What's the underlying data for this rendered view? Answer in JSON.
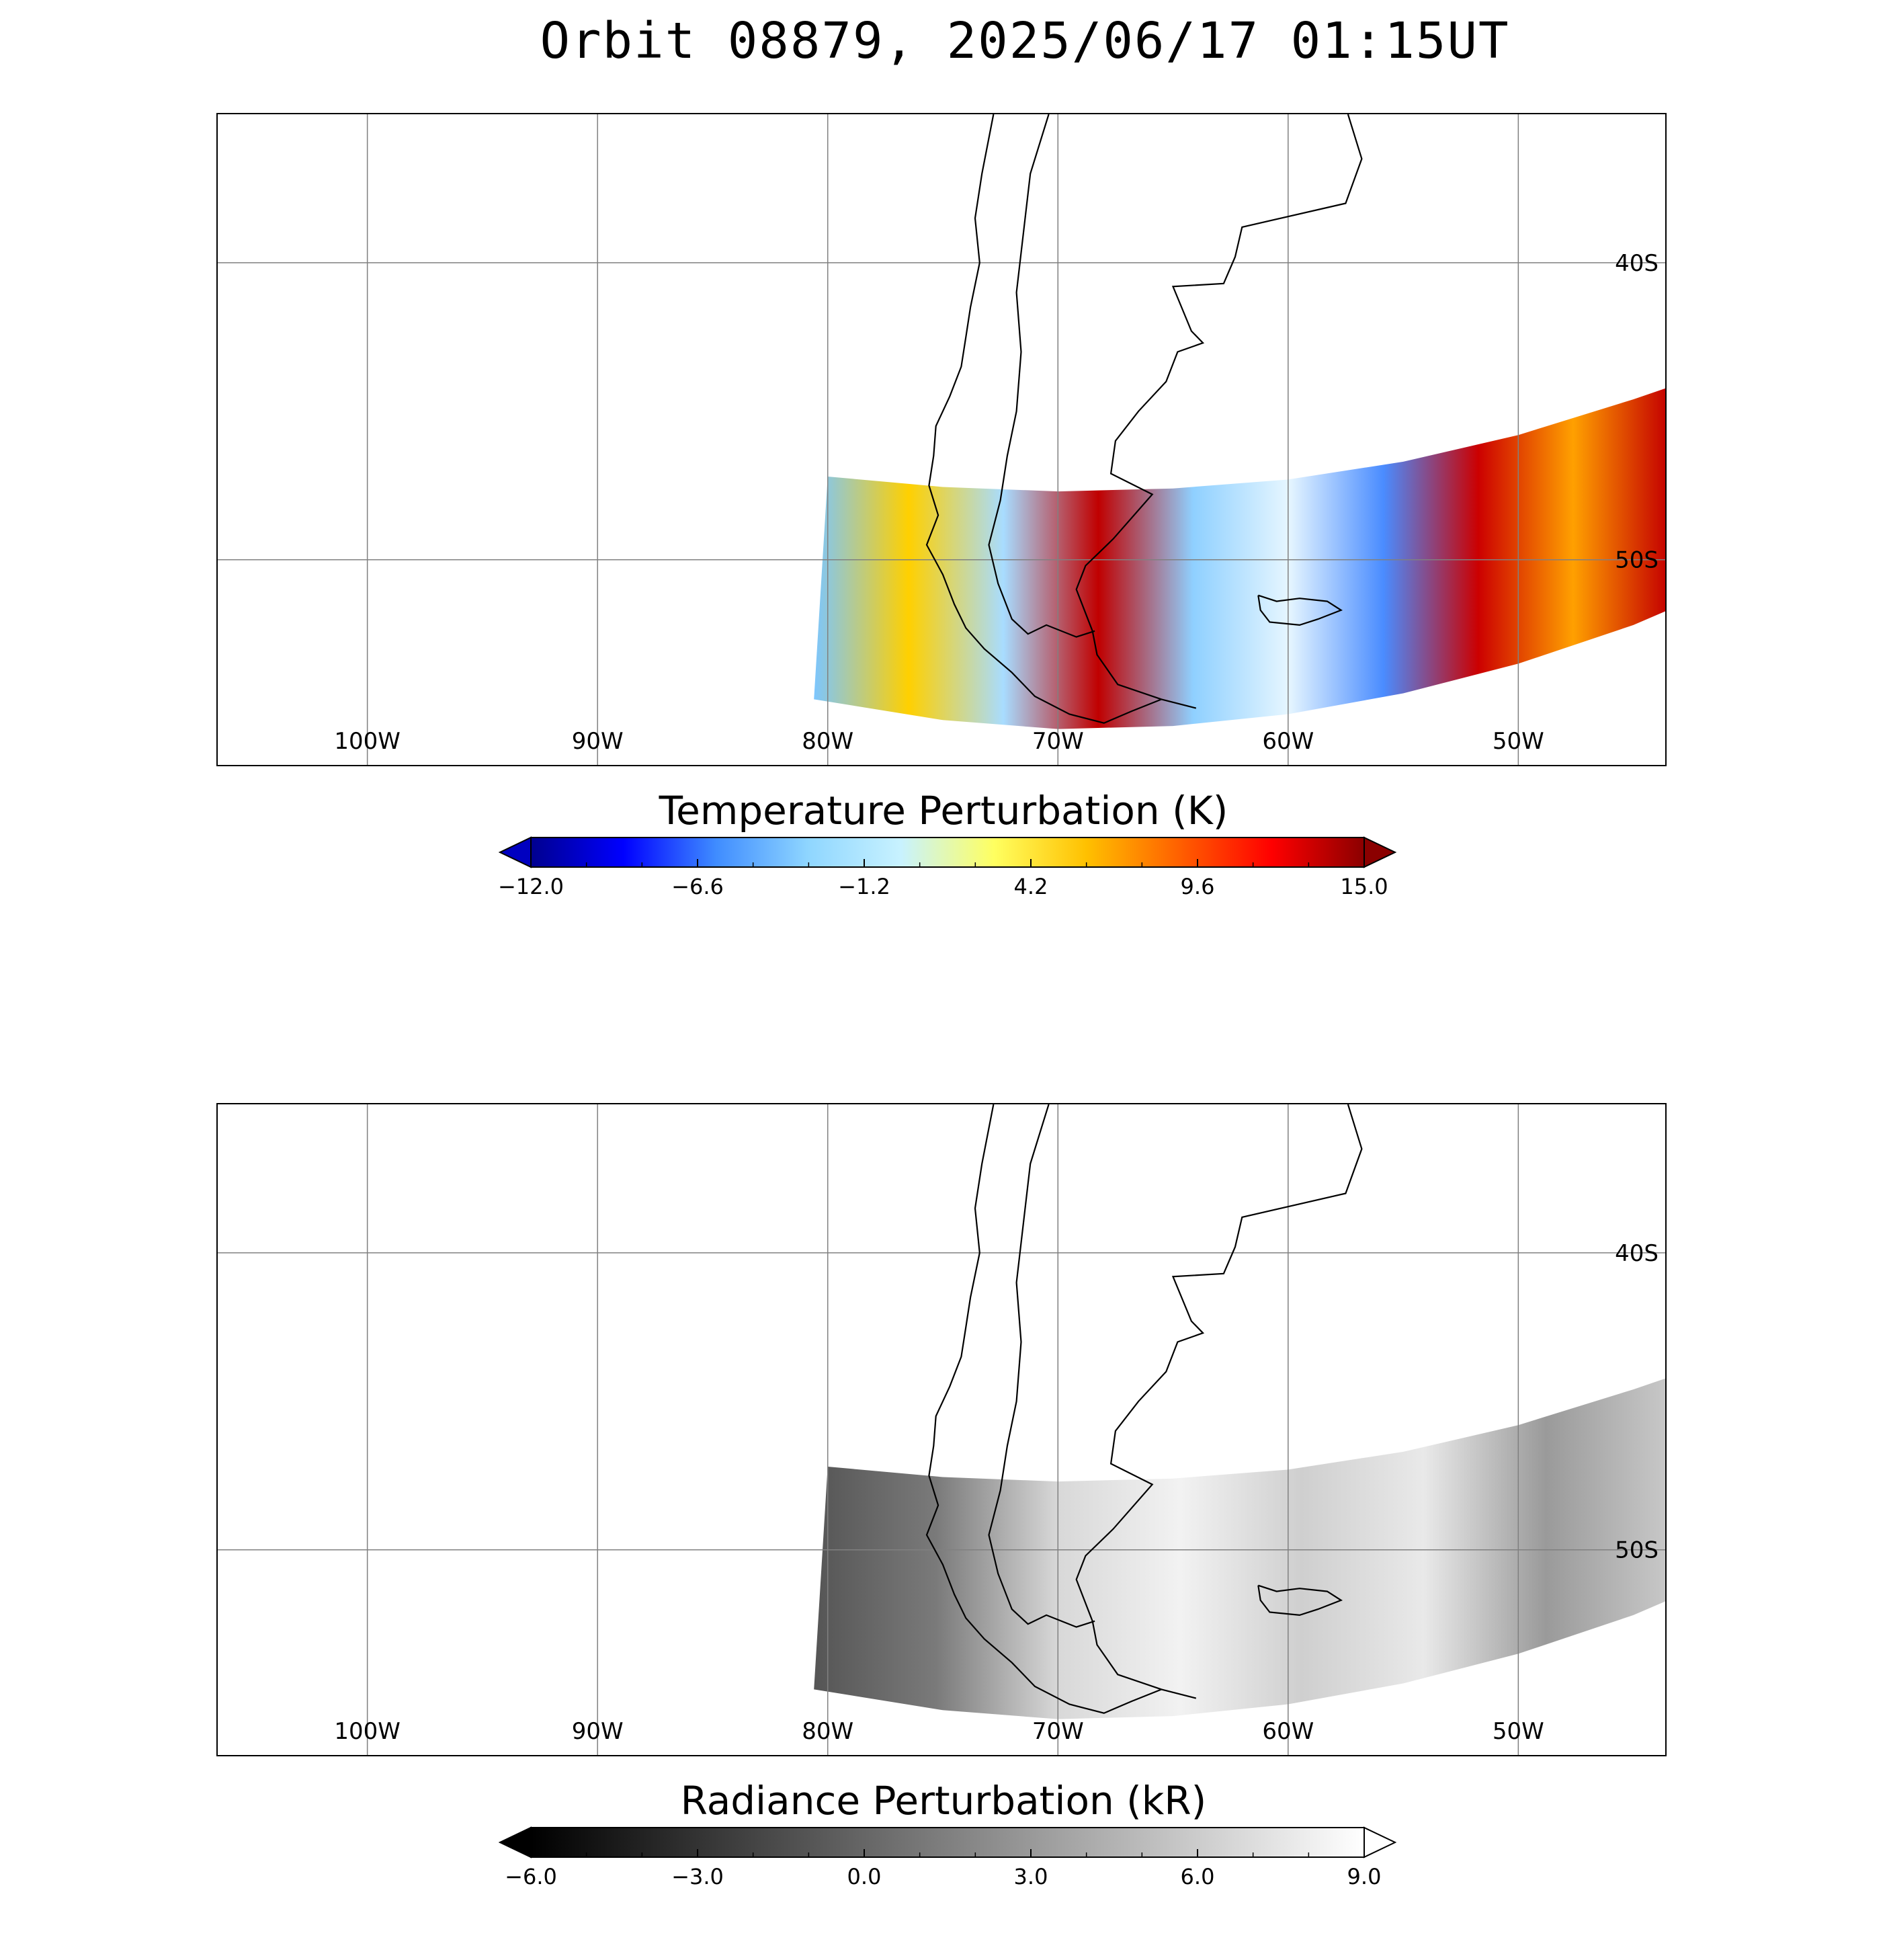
{
  "title": "Orbit 08879, 2025/06/17 01:15UT",
  "map": {
    "lon_range": [
      -106.5,
      -43.5
    ],
    "lat_range": [
      -57,
      -35
    ],
    "lon_gridlines": [
      -100,
      -90,
      -80,
      -70,
      -60,
      -50
    ],
    "lat_gridlines": [
      -40,
      -50
    ],
    "lon_labels": [
      "100W",
      "90W",
      "80W",
      "70W",
      "60W",
      "50W"
    ],
    "lat_labels": [
      "40S",
      "50S"
    ],
    "swath_description_key": "AIRS orbit swath over southern South America"
  },
  "panels": [
    {
      "id": "temperature",
      "colorbar_title": "Temperature Perturbation (K)",
      "colorbar_ticks": [
        "−12.0",
        "−6.6",
        "−1.2",
        "4.2",
        "9.6",
        "15.0"
      ],
      "colorbar_range": [
        -12.0,
        15.0
      ],
      "colormap": [
        "#00008f",
        "#0000ff",
        "#3f8cff",
        "#8fd6ff",
        "#c8f2ff",
        "#ffff60",
        "#ffc000",
        "#ff6000",
        "#ff0000",
        "#8b0000"
      ],
      "low_arrow_color": "#0000c0",
      "high_arrow_color": "#8b0000"
    },
    {
      "id": "radiance",
      "colorbar_title": "Radiance Perturbation (kR)",
      "colorbar_ticks": [
        "−6.0",
        "−3.0",
        "0.0",
        "3.0",
        "6.0",
        "9.0"
      ],
      "colorbar_range": [
        -6.0,
        9.0
      ],
      "colormap": [
        "#000000",
        "#ffffff"
      ],
      "low_arrow_color": "#000000",
      "high_arrow_color": "#ffffff"
    }
  ]
}
